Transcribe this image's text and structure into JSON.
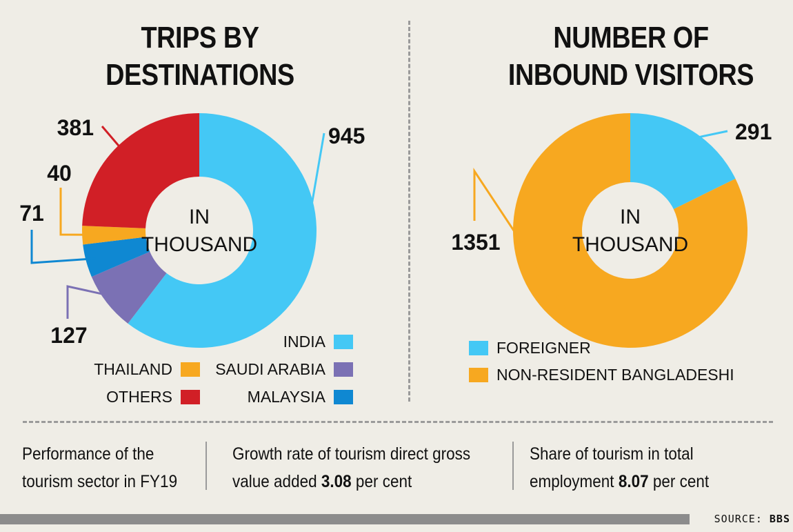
{
  "chart_data": [
    {
      "type": "pie",
      "title": "TRIPS BY DESTINATIONS",
      "title_lines": [
        "TRIPS BY",
        "DESTINATIONS"
      ],
      "center_label": [
        "IN",
        "THOUSAND"
      ],
      "unit": "thousand",
      "slices": [
        {
          "label": "INDIA",
          "value": 945,
          "color": "#44c8f5"
        },
        {
          "label": "SAUDI ARABIA",
          "value": 127,
          "color": "#7b71b4"
        },
        {
          "label": "MALAYSIA",
          "value": 71,
          "color": "#0f88d2"
        },
        {
          "label": "THAILAND",
          "value": 40,
          "color": "#f7a820"
        },
        {
          "label": "OTHERS",
          "value": 381,
          "color": "#d11f26"
        }
      ],
      "legend": [
        {
          "label": "INDIA",
          "color": "#44c8f5"
        },
        {
          "label": "THAILAND",
          "color": "#f7a820"
        },
        {
          "label": "SAUDI ARABIA",
          "color": "#7b71b4"
        },
        {
          "label": "OTHERS",
          "color": "#d11f26"
        },
        {
          "label": "MALAYSIA",
          "color": "#0f88d2"
        }
      ]
    },
    {
      "type": "pie",
      "title": "NUMBER OF INBOUND VISITORS",
      "title_lines": [
        "NUMBER OF",
        "INBOUND VISITORS"
      ],
      "center_label": [
        "IN",
        "THOUSAND"
      ],
      "unit": "thousand",
      "slices": [
        {
          "label": "FOREIGNER",
          "value": 291,
          "color": "#44c8f5"
        },
        {
          "label": "NON-RESIDENT BANGLADESHI",
          "value": 1351,
          "color": "#f7a820"
        }
      ],
      "legend": [
        {
          "label": "FOREIGNER",
          "color": "#44c8f5"
        },
        {
          "label": "NON-RESIDENT BANGLADESHI",
          "color": "#f7a820"
        }
      ]
    }
  ],
  "footer": {
    "item1_line1": "Performance of the",
    "item1_line2": "tourism sector in FY19",
    "item2_line1": "Growth rate of tourism direct gross",
    "item2_line2_pre": "value added ",
    "item2_value": "3.08",
    "item2_line2_post": " per cent",
    "item3_line1": "Share of tourism in total",
    "item3_line2_pre": "employment ",
    "item3_value": "8.07",
    "item3_line2_post": " per cent"
  },
  "source_label": "SOURCE:",
  "source_value": "BBS"
}
